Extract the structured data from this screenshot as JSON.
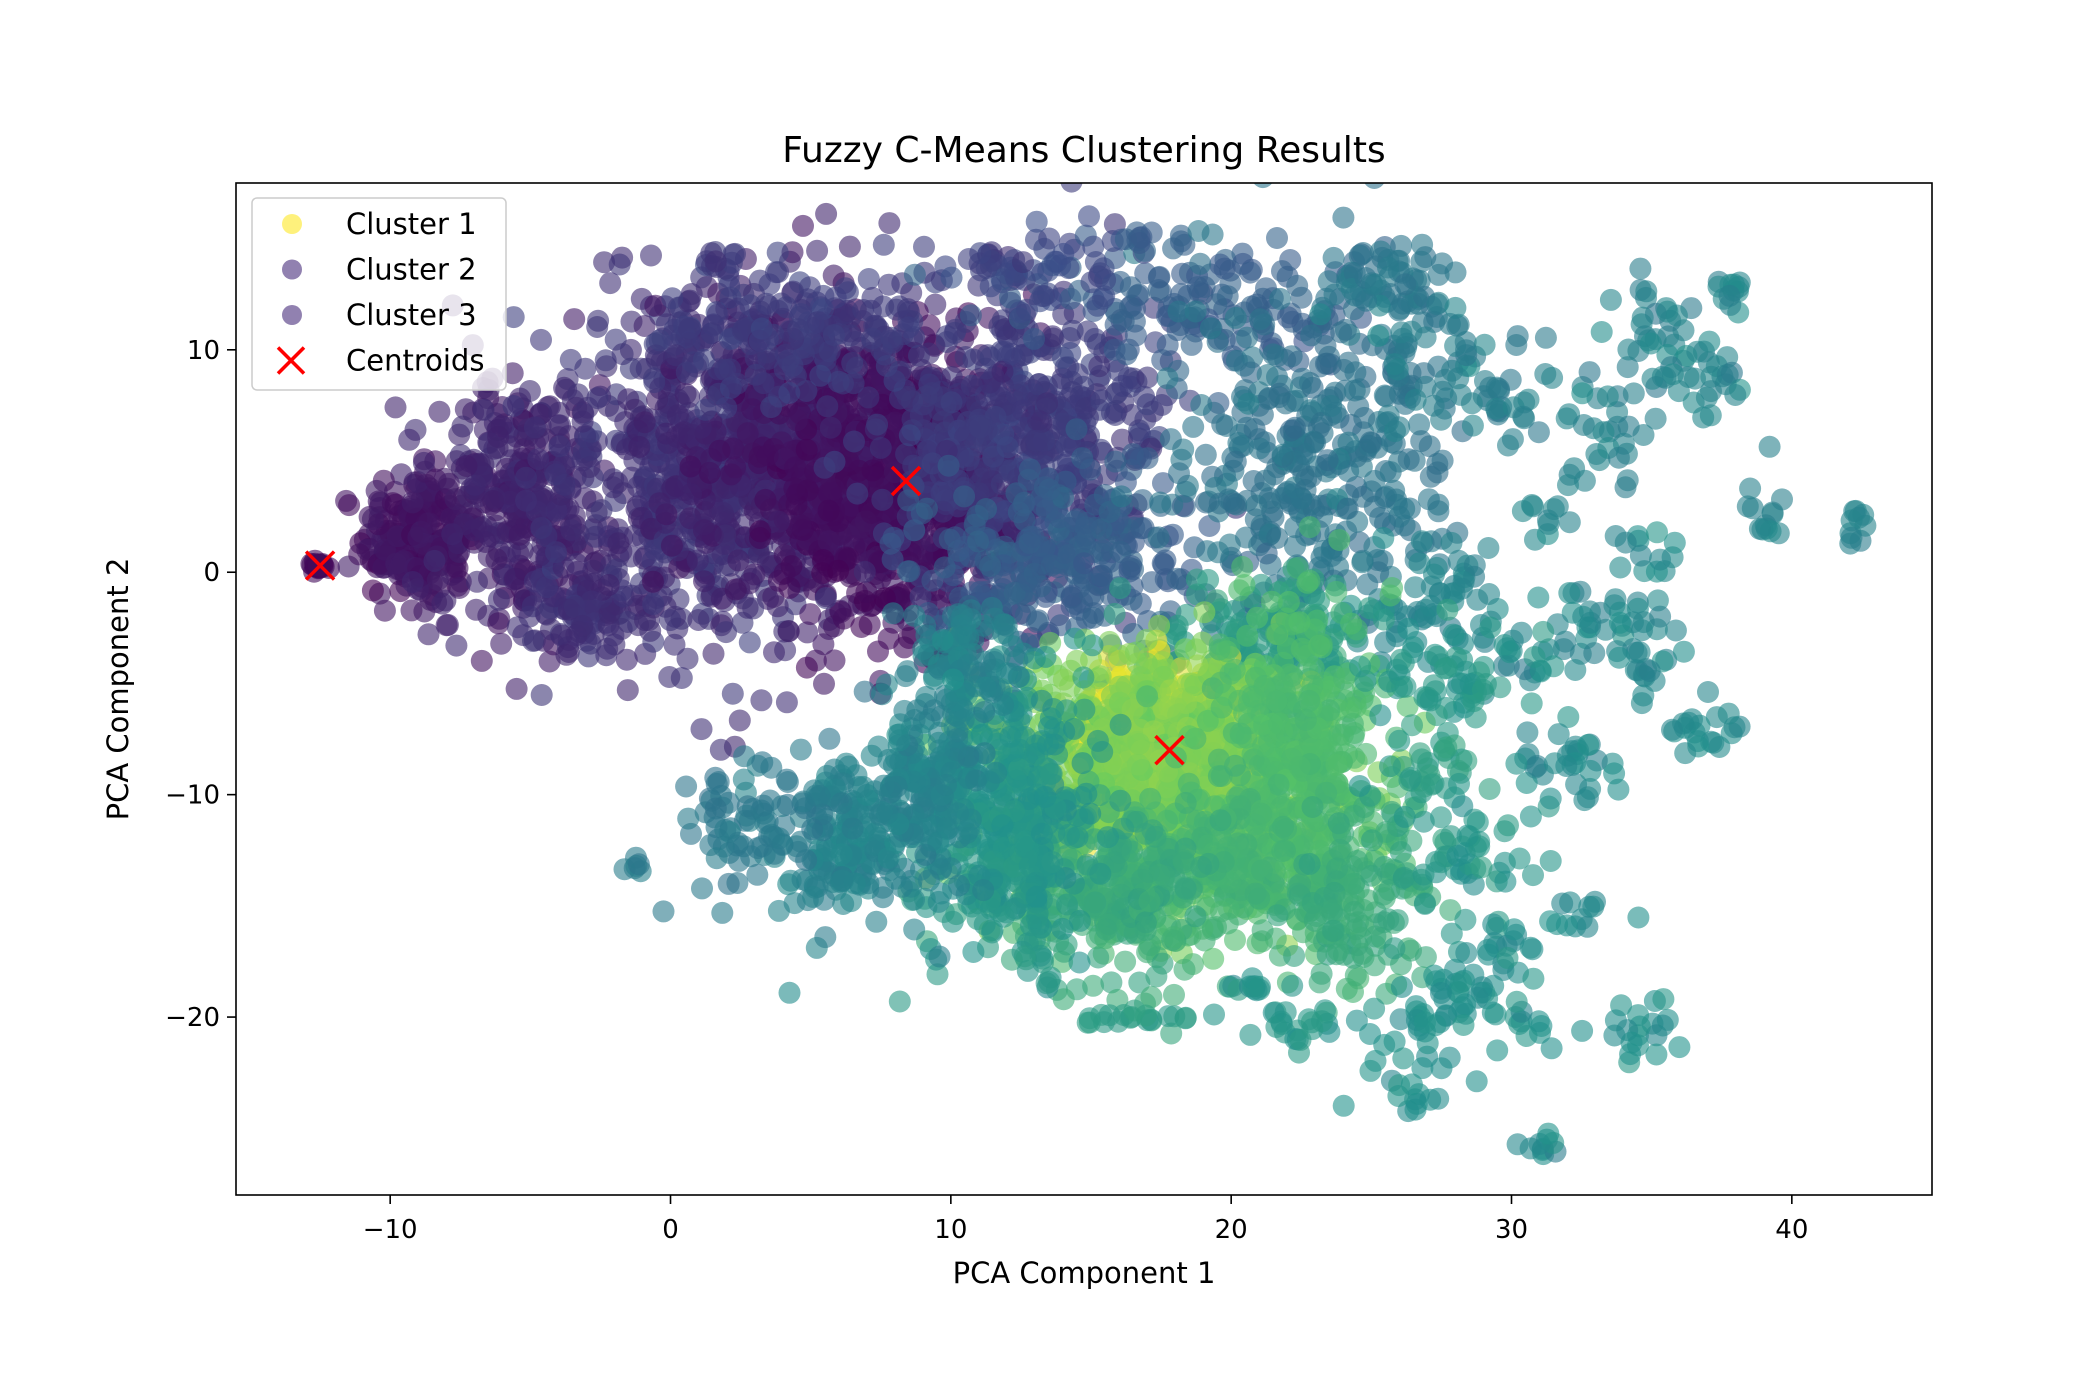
{
  "chart_data": {
    "type": "scatter",
    "title": "Fuzzy C-Means Clustering Results",
    "xlabel": "PCA Component 1",
    "ylabel": "PCA Component 2",
    "xlim": [
      -15.5,
      45
    ],
    "ylim": [
      -28,
      17.5
    ],
    "xticks": [
      -10,
      0,
      10,
      20,
      30,
      40
    ],
    "yticks": [
      -20,
      -10,
      0,
      10
    ],
    "xtick_labels": [
      "−10",
      "0",
      "10",
      "20",
      "30",
      "40"
    ],
    "ytick_labels": [
      "−20",
      "−10",
      "0",
      "10"
    ],
    "grid": false,
    "legend_position": "top-left",
    "colormap": [
      "#440154",
      "#3b528b",
      "#21918c",
      "#5ec962",
      "#fde725"
    ],
    "legend": [
      {
        "label": "Cluster 1",
        "marker": "circle",
        "color": "#fde725"
      },
      {
        "label": "Cluster 2",
        "marker": "circle",
        "color": "#472d7b"
      },
      {
        "label": "Cluster 3",
        "marker": "circle",
        "color": "#472d7b"
      },
      {
        "label": "Centroids",
        "marker": "x",
        "color": "#ff0000"
      }
    ],
    "centroids": [
      {
        "x": -12.5,
        "y": 0.3
      },
      {
        "x": 8.4,
        "y": 4.1
      },
      {
        "x": 17.8,
        "y": -8.0
      }
    ],
    "point_groups": [
      {
        "x": -12.6,
        "y": 0.3,
        "sx": 0.15,
        "sy": 0.15,
        "n": 20,
        "c": 0.02
      },
      {
        "x": -9.0,
        "y": 1.5,
        "sx": 1.0,
        "sy": 1.5,
        "n": 220,
        "c": 0.06
      },
      {
        "x": -5.5,
        "y": 3.0,
        "sx": 1.5,
        "sy": 3.0,
        "n": 320,
        "c": 0.1
      },
      {
        "x": -3.0,
        "y": -1.5,
        "sx": 1.0,
        "sy": 1.0,
        "n": 80,
        "c": 0.14
      },
      {
        "x": 0.5,
        "y": 4.0,
        "sx": 2.5,
        "sy": 4.0,
        "n": 520,
        "c": 0.15
      },
      {
        "x": 4.5,
        "y": 5.5,
        "sx": 2.5,
        "sy": 3.5,
        "n": 650,
        "c": 0.1
      },
      {
        "x": 8.4,
        "y": 4.0,
        "sx": 2.5,
        "sy": 3.0,
        "n": 900,
        "c": 0.04
      },
      {
        "x": 12.5,
        "y": 6.0,
        "sx": 2.5,
        "sy": 3.5,
        "n": 500,
        "c": 0.18
      },
      {
        "x": 4.0,
        "y": 11.0,
        "sx": 3.0,
        "sy": 1.5,
        "n": 180,
        "c": 0.18
      },
      {
        "x": 14.0,
        "y": 0.5,
        "sx": 2.5,
        "sy": 2.0,
        "n": 260,
        "c": 0.3
      },
      {
        "x": 19.0,
        "y": 12.0,
        "sx": 3.0,
        "sy": 1.5,
        "n": 140,
        "c": 0.3
      },
      {
        "x": 23.0,
        "y": 5.0,
        "sx": 2.5,
        "sy": 4.0,
        "n": 360,
        "c": 0.38
      },
      {
        "x": 25.5,
        "y": 13.0,
        "sx": 1.2,
        "sy": 1.2,
        "n": 60,
        "c": 0.4
      },
      {
        "x": 28.5,
        "y": 9.0,
        "sx": 1.5,
        "sy": 1.5,
        "n": 50,
        "c": 0.42
      },
      {
        "x": 32.5,
        "y": 6.5,
        "sx": 1.5,
        "sy": 1.5,
        "n": 40,
        "c": 0.44
      },
      {
        "x": 35.5,
        "y": 11.5,
        "sx": 1.0,
        "sy": 1.0,
        "n": 25,
        "c": 0.44
      },
      {
        "x": 36.5,
        "y": 8.5,
        "sx": 1.0,
        "sy": 1.0,
        "n": 30,
        "c": 0.45
      },
      {
        "x": 38.0,
        "y": 12.5,
        "sx": 0.4,
        "sy": 0.4,
        "n": 12,
        "c": 0.45
      },
      {
        "x": 39.0,
        "y": 2.5,
        "sx": 0.4,
        "sy": 0.4,
        "n": 12,
        "c": 0.45
      },
      {
        "x": 42.3,
        "y": 2.0,
        "sx": 0.25,
        "sy": 0.5,
        "n": 10,
        "c": 0.45
      },
      {
        "x": 31.0,
        "y": 2.5,
        "sx": 0.5,
        "sy": 0.5,
        "n": 10,
        "c": 0.45
      },
      {
        "x": 34.5,
        "y": 0.5,
        "sx": 0.8,
        "sy": 0.8,
        "n": 15,
        "c": 0.46
      },
      {
        "x": 33.0,
        "y": -2.0,
        "sx": 1.0,
        "sy": 1.0,
        "n": 25,
        "c": 0.46
      },
      {
        "x": 35.0,
        "y": -4.0,
        "sx": 0.8,
        "sy": 1.0,
        "n": 20,
        "c": 0.46
      },
      {
        "x": 37.0,
        "y": -7.0,
        "sx": 0.8,
        "sy": 0.8,
        "n": 20,
        "c": 0.47
      },
      {
        "x": 31.0,
        "y": -3.5,
        "sx": 0.8,
        "sy": 0.8,
        "n": 15,
        "c": 0.46
      },
      {
        "x": 27.0,
        "y": -1.5,
        "sx": 1.5,
        "sy": 1.5,
        "n": 60,
        "c": 0.45
      },
      {
        "x": 21.5,
        "y": -3.0,
        "sx": 2.0,
        "sy": 1.2,
        "n": 150,
        "c": 0.55
      },
      {
        "x": 17.8,
        "y": -8.0,
        "sx": 1.6,
        "sy": 1.6,
        "n": 800,
        "c": 0.95
      },
      {
        "x": 17.5,
        "y": -9.0,
        "sx": 3.0,
        "sy": 2.6,
        "n": 900,
        "c": 0.8
      },
      {
        "x": 22.5,
        "y": -8.5,
        "sx": 1.5,
        "sy": 3.5,
        "n": 400,
        "c": 0.68
      },
      {
        "x": 19.0,
        "y": -13.5,
        "sx": 2.5,
        "sy": 2.0,
        "n": 260,
        "c": 0.65
      },
      {
        "x": 24.5,
        "y": -15.0,
        "sx": 1.5,
        "sy": 2.0,
        "n": 120,
        "c": 0.6
      },
      {
        "x": 15.5,
        "y": -14.5,
        "sx": 2.0,
        "sy": 2.0,
        "n": 200,
        "c": 0.6
      },
      {
        "x": 12.0,
        "y": -11.0,
        "sx": 1.5,
        "sy": 3.0,
        "n": 380,
        "c": 0.52
      },
      {
        "x": 9.5,
        "y": -9.5,
        "sx": 1.0,
        "sy": 2.0,
        "n": 120,
        "c": 0.45
      },
      {
        "x": 6.5,
        "y": -12.0,
        "sx": 1.5,
        "sy": 2.0,
        "n": 200,
        "c": 0.44
      },
      {
        "x": 2.5,
        "y": -11.5,
        "sx": 1.5,
        "sy": 1.3,
        "n": 70,
        "c": 0.4
      },
      {
        "x": -1.3,
        "y": -13.3,
        "sx": 0.2,
        "sy": 0.2,
        "n": 6,
        "c": 0.4
      },
      {
        "x": 10.5,
        "y": -4.0,
        "sx": 1.0,
        "sy": 1.5,
        "n": 90,
        "c": 0.44
      },
      {
        "x": 28.0,
        "y": -5.0,
        "sx": 1.5,
        "sy": 1.2,
        "n": 60,
        "c": 0.52
      },
      {
        "x": 27.0,
        "y": -9.0,
        "sx": 1.0,
        "sy": 1.0,
        "n": 30,
        "c": 0.55
      },
      {
        "x": 28.5,
        "y": -12.5,
        "sx": 1.3,
        "sy": 1.5,
        "n": 50,
        "c": 0.52
      },
      {
        "x": 32.0,
        "y": -9.0,
        "sx": 1.0,
        "sy": 1.0,
        "n": 30,
        "c": 0.47
      },
      {
        "x": 32.5,
        "y": -15.5,
        "sx": 0.7,
        "sy": 0.5,
        "n": 12,
        "c": 0.47
      },
      {
        "x": 30.0,
        "y": -17.0,
        "sx": 0.7,
        "sy": 0.6,
        "n": 15,
        "c": 0.48
      },
      {
        "x": 28.5,
        "y": -19.0,
        "sx": 1.0,
        "sy": 1.0,
        "n": 30,
        "c": 0.5
      },
      {
        "x": 26.0,
        "y": -21.0,
        "sx": 1.0,
        "sy": 1.3,
        "n": 30,
        "c": 0.5
      },
      {
        "x": 26.5,
        "y": -23.5,
        "sx": 0.3,
        "sy": 0.3,
        "n": 8,
        "c": 0.5
      },
      {
        "x": 30.5,
        "y": -20.5,
        "sx": 0.6,
        "sy": 0.5,
        "n": 12,
        "c": 0.5
      },
      {
        "x": 31.0,
        "y": -25.8,
        "sx": 0.4,
        "sy": 0.3,
        "n": 10,
        "c": 0.47
      },
      {
        "x": 34.5,
        "y": -20.5,
        "sx": 0.8,
        "sy": 0.8,
        "n": 20,
        "c": 0.5
      },
      {
        "x": 22.5,
        "y": -20.5,
        "sx": 0.8,
        "sy": 0.6,
        "n": 20,
        "c": 0.52
      },
      {
        "x": 20.5,
        "y": -18.5,
        "sx": 0.5,
        "sy": 0.3,
        "n": 12,
        "c": 0.52
      },
      {
        "x": 16.5,
        "y": -20.0,
        "sx": 1.2,
        "sy": 0.2,
        "n": 20,
        "c": 0.55
      },
      {
        "x": 13.5,
        "y": 13.5,
        "sx": 1.5,
        "sy": 1.0,
        "n": 40,
        "c": 0.22
      },
      {
        "x": 16.5,
        "y": 15.0,
        "sx": 0.3,
        "sy": 0.4,
        "n": 8,
        "c": 0.3
      },
      {
        "x": 2.0,
        "y": 14.0,
        "sx": 0.3,
        "sy": 0.3,
        "n": 8,
        "c": 0.17
      },
      {
        "x": 11.5,
        "y": 14.0,
        "sx": 0.7,
        "sy": 0.3,
        "n": 10,
        "c": 0.18
      }
    ]
  }
}
